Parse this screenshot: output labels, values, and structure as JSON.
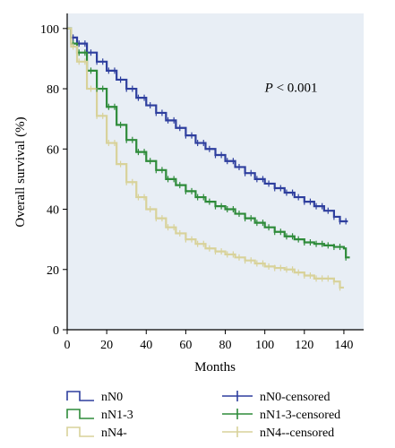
{
  "chart_data": {
    "type": "line",
    "title": "",
    "xlabel": "Months",
    "ylabel": "Overall survival (%)",
    "xlim": [
      0,
      150
    ],
    "ylim": [
      0,
      105
    ],
    "xticks": [
      0,
      20,
      40,
      60,
      80,
      100,
      120,
      140
    ],
    "yticks": [
      0,
      20,
      40,
      60,
      80,
      100
    ],
    "grid": false,
    "legend_position": "bottom",
    "annotation": {
      "italic": "P",
      "text": " < 0.001",
      "x": 100,
      "y": 79
    },
    "series": [
      {
        "name": "nN0",
        "color": "#2e3f9e",
        "x": [
          0,
          2,
          5,
          10,
          15,
          20,
          25,
          30,
          35,
          40,
          45,
          50,
          55,
          60,
          65,
          70,
          75,
          80,
          85,
          90,
          95,
          100,
          105,
          110,
          115,
          120,
          125,
          130,
          135,
          138,
          142
        ],
        "y": [
          100,
          97,
          95,
          92,
          89,
          86,
          83,
          80,
          77,
          74.5,
          72,
          69.5,
          67,
          64.5,
          62,
          60,
          58,
          56,
          54,
          52,
          50,
          48.5,
          47,
          45.5,
          44,
          42.5,
          41,
          39.5,
          37.5,
          36,
          36
        ]
      },
      {
        "name": "nN1-3",
        "color": "#2e8b3a",
        "x": [
          0,
          2,
          5,
          10,
          15,
          20,
          25,
          30,
          35,
          40,
          45,
          50,
          55,
          60,
          65,
          70,
          75,
          80,
          85,
          90,
          95,
          100,
          105,
          110,
          115,
          120,
          125,
          130,
          135,
          140,
          141,
          143
        ],
        "y": [
          100,
          95,
          92,
          86,
          80,
          74,
          68,
          63,
          59,
          56,
          53,
          50,
          48,
          46,
          44,
          42.5,
          41,
          40,
          38.5,
          37,
          35.5,
          34,
          32.5,
          31,
          30,
          29,
          28.5,
          28,
          27.5,
          27,
          24,
          24
        ]
      },
      {
        "name": "nN4-",
        "color": "#d8d29a",
        "x": [
          0,
          2,
          5,
          10,
          15,
          20,
          25,
          30,
          35,
          40,
          45,
          50,
          55,
          60,
          65,
          70,
          75,
          80,
          85,
          90,
          95,
          100,
          105,
          110,
          115,
          120,
          125,
          130,
          135,
          138,
          140
        ],
        "y": [
          100,
          94,
          89,
          80,
          71,
          62,
          55,
          49,
          44,
          40,
          37,
          34,
          32,
          30,
          28.5,
          27,
          26,
          25,
          24,
          23,
          22,
          21,
          20.5,
          20,
          19,
          18,
          17,
          17,
          16,
          14,
          14
        ]
      }
    ],
    "legend": [
      {
        "label": "nN0",
        "color": "#2e3f9e",
        "kind": "step"
      },
      {
        "label": "nN0-censored",
        "color": "#2e3f9e",
        "kind": "censor"
      },
      {
        "label": "nN1-3",
        "color": "#2e8b3a",
        "kind": "step"
      },
      {
        "label": "nN1-3-censored",
        "color": "#2e8b3a",
        "kind": "censor"
      },
      {
        "label": "nN4-",
        "color": "#d8d29a",
        "kind": "step"
      },
      {
        "label": "nN4--censored",
        "color": "#d8d29a",
        "kind": "censor"
      }
    ]
  }
}
